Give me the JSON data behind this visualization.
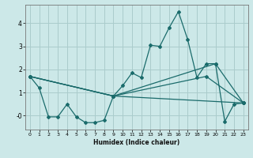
{
  "bg_color": "#cce8e8",
  "grid_color": "#aacccc",
  "line_color": "#1a6b6b",
  "xlabel": "Humidex (Indice chaleur)",
  "xlim": [
    -0.5,
    23.5
  ],
  "ylim": [
    -0.6,
    4.8
  ],
  "yticks": [
    0,
    1,
    2,
    3,
    4
  ],
  "ytick_labels": [
    "-0",
    "1",
    "2",
    "3",
    "4"
  ],
  "main_x": [
    0,
    1,
    2,
    3,
    4,
    5,
    6,
    7,
    8,
    9,
    10,
    11,
    12,
    13,
    14,
    15,
    16,
    17,
    18,
    19,
    20,
    21,
    22,
    23
  ],
  "main_y": [
    1.7,
    1.2,
    -0.05,
    -0.05,
    0.5,
    -0.05,
    -0.3,
    -0.3,
    -0.2,
    0.85,
    1.3,
    1.85,
    1.65,
    3.05,
    3.0,
    3.8,
    4.5,
    3.3,
    1.65,
    2.25,
    2.25,
    -0.25,
    0.5,
    0.55
  ],
  "trend1_x": [
    0,
    9,
    20,
    23
  ],
  "trend1_y": [
    1.7,
    0.85,
    2.25,
    0.55
  ],
  "trend2_x": [
    0,
    9,
    19,
    23
  ],
  "trend2_y": [
    1.7,
    0.85,
    1.7,
    0.55
  ],
  "trend3_x": [
    0,
    9,
    23
  ],
  "trend3_y": [
    1.7,
    0.85,
    0.55
  ]
}
